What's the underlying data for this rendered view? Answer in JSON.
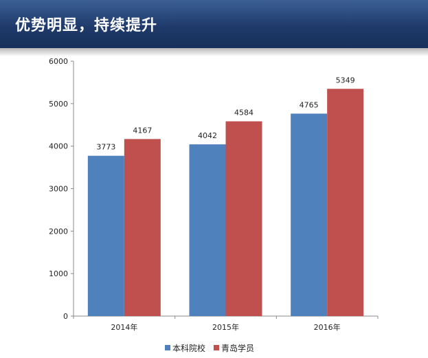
{
  "header": {
    "title": "优势明显，持续提升"
  },
  "colors": {
    "header_bg": "#1f3b6b",
    "series_1": "#4f81bd",
    "series_2": "#c0504d"
  },
  "chart_data": {
    "type": "bar",
    "title": "",
    "xlabel": "",
    "ylabel": "",
    "categories": [
      "2014年",
      "2015年",
      "2016年"
    ],
    "series": [
      {
        "name": "本科院校",
        "values": [
          3773,
          4042,
          4765
        ],
        "color": "#4f81bd"
      },
      {
        "name": "青岛学员",
        "values": [
          4167,
          4584,
          5349
        ],
        "color": "#c0504d"
      }
    ],
    "ylim": [
      0,
      6000
    ],
    "yticks": [
      0,
      1000,
      2000,
      3000,
      4000,
      5000,
      6000
    ],
    "grid": false,
    "legend_position": "bottom",
    "data_labels": true
  }
}
